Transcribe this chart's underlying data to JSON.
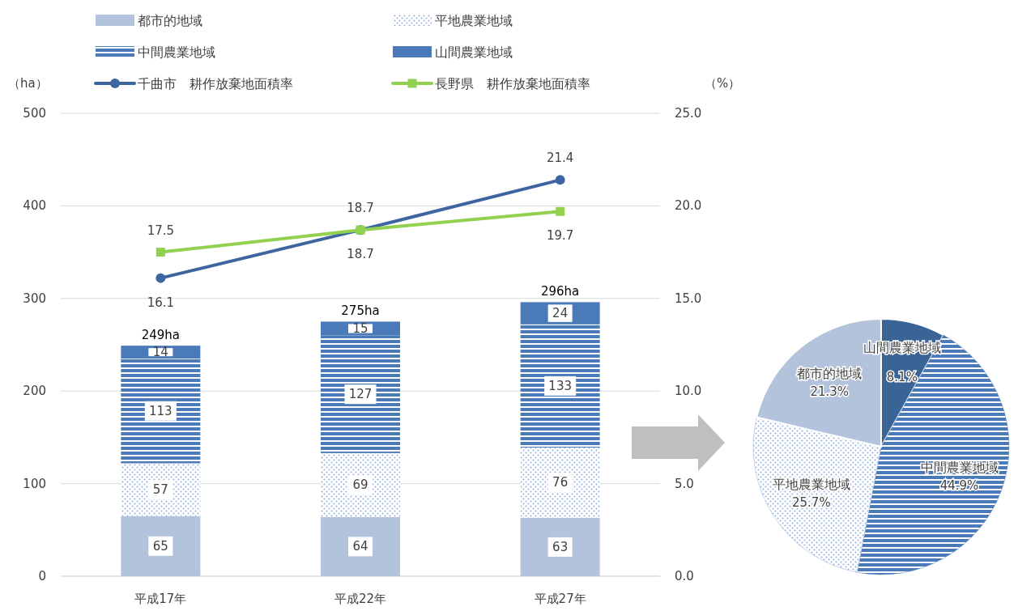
{
  "chart_data": [
    {
      "type": "bar",
      "stacked": true,
      "categories": [
        "平成17年",
        "平成22年",
        "平成27年"
      ],
      "ylabel": "（ha）",
      "y2label": "（%）",
      "ylim": [
        0,
        500
      ],
      "yticks": [
        0,
        100,
        200,
        300,
        400,
        500
      ],
      "y2lim": [
        0,
        25
      ],
      "y2ticks": [
        {
          "value": 0,
          "label": "0.0"
        },
        {
          "value": 5,
          "label": "5.0"
        },
        {
          "value": 10,
          "label": "10.0"
        },
        {
          "value": 15,
          "label": "15.0"
        },
        {
          "value": 20,
          "label": "20.0"
        },
        {
          "value": 25,
          "label": "25.0"
        }
      ],
      "grid": "y",
      "legend": "top",
      "data_labels": true,
      "totals": [
        "249ha",
        "275ha",
        "296ha"
      ],
      "series": [
        {
          "name": "都市的地域",
          "color": "#b4c3dc",
          "values": [
            65,
            64,
            63
          ]
        },
        {
          "name": "平地農業地域",
          "color": "#8fb0de",
          "values": [
            57,
            69,
            76
          ]
        },
        {
          "name": "中間農業地域",
          "color": "#4a7ab8",
          "values": [
            113,
            127,
            133
          ]
        },
        {
          "name": "山間農業地域",
          "color": "#4a7ab8",
          "values": [
            14,
            15,
            24
          ]
        },
        {
          "name": "千曲市　耕作放棄地面積率",
          "type": "line",
          "axis": "y2",
          "marker": "circle",
          "color": "#3d65a0",
          "values": [
            16.1,
            18.7,
            21.4
          ]
        },
        {
          "name": "長野県　耕作放棄地面積率",
          "type": "line",
          "axis": "y2",
          "marker": "square",
          "color": "#92d050",
          "values": [
            17.5,
            18.7,
            19.7
          ]
        }
      ]
    },
    {
      "type": "pie",
      "categories": [
        "山間農業地域",
        "中間農業地域",
        "平地農業地域",
        "都市的地域"
      ],
      "values": [
        8.1,
        44.9,
        25.7,
        21.3
      ],
      "colors": [
        "#3a6496",
        "#4a7ab8",
        "#8fb0de",
        "#b4c3dc"
      ],
      "value_labels": [
        "8.1%",
        "44.9%",
        "25.7%",
        "21.3%"
      ]
    }
  ]
}
